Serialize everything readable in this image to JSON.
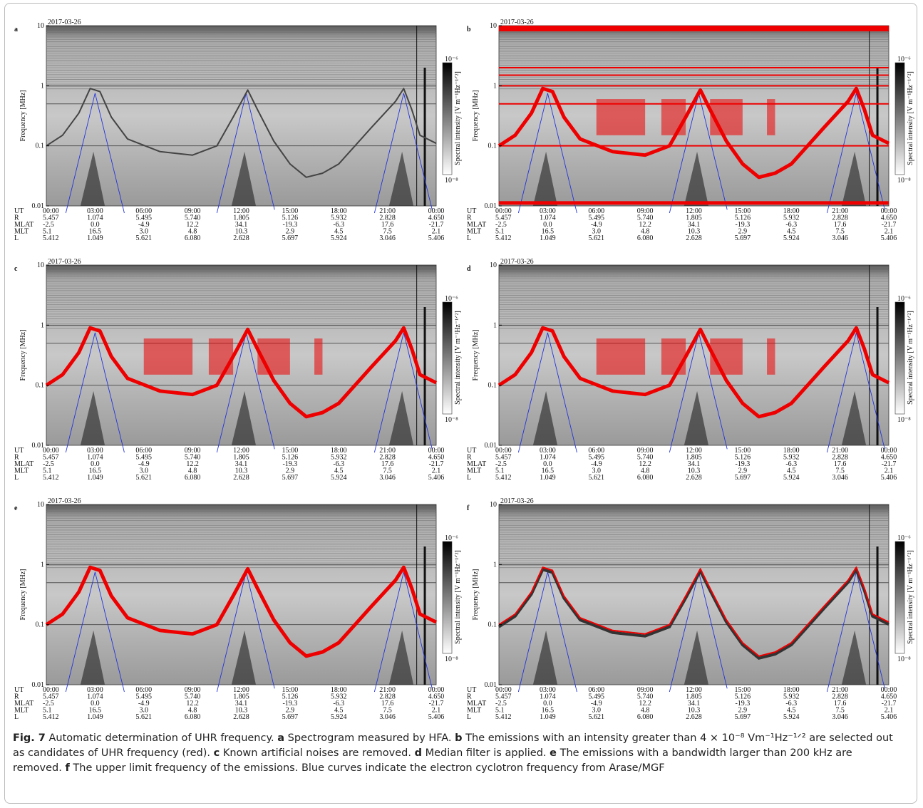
{
  "figure": {
    "panel_labels": [
      "a",
      "b",
      "c",
      "d",
      "e",
      "f"
    ],
    "date": "2017-03-26",
    "y_axis_label": "Frequency [MHz]",
    "y_tick_labels": [
      "10",
      "1",
      "0.1",
      "0.01"
    ],
    "colorbar_label": "Spectral intensity [V m⁻¹Hz⁻¹ᐟ²]",
    "colorbar_max": "10⁻⁶",
    "colorbar_min": "10⁻⁸",
    "ephemeris": {
      "row_labels": [
        "UT",
        "R",
        "MLAT",
        "MLT",
        "L"
      ],
      "rows": [
        [
          "00:00",
          "03:00",
          "06:00",
          "09:00",
          "12:00",
          "15:00",
          "18:00",
          "21:00",
          "00:00"
        ],
        [
          "5.457",
          "1.074",
          "5.495",
          "5.740",
          "1.805",
          "5.126",
          "5.932",
          "2.828",
          "4.650"
        ],
        [
          "-2.5",
          "0.0",
          "-4.9",
          "12.2",
          "34.1",
          "-19.3",
          "-6.3",
          "17.6",
          "-21.7"
        ],
        [
          "5.1",
          "16.5",
          "3.0",
          "4.8",
          "10.3",
          "2.9",
          "4.5",
          "7.5",
          "2.1"
        ],
        [
          "5.412",
          "1.049",
          "5.621",
          "6.080",
          "2.628",
          "5.697",
          "5.924",
          "3.046",
          "5.406"
        ]
      ]
    }
  },
  "caption": {
    "fig_label": "Fig. 7",
    "title": "Automatic determination of UHR frequency.",
    "items": [
      {
        "label": "a",
        "text": "Spectrogram measured by HFA."
      },
      {
        "label": "b",
        "text": "The emissions with an intensity greater than 4 × 10⁻⁸ Vm⁻¹Hz⁻¹ᐟ² are selected out as candidates of UHR frequency (red)."
      },
      {
        "label": "c",
        "text": "Known artificial noises are removed."
      },
      {
        "label": "d",
        "text": "Median filter is applied."
      },
      {
        "label": "e",
        "text": "The emissions with a bandwidth larger than 200 kHz are removed."
      },
      {
        "label": "f",
        "text": "The upper limit frequency of the emissions. Blue curves indicate the electron cyclotron frequency from Arase/MGF"
      }
    ]
  }
}
